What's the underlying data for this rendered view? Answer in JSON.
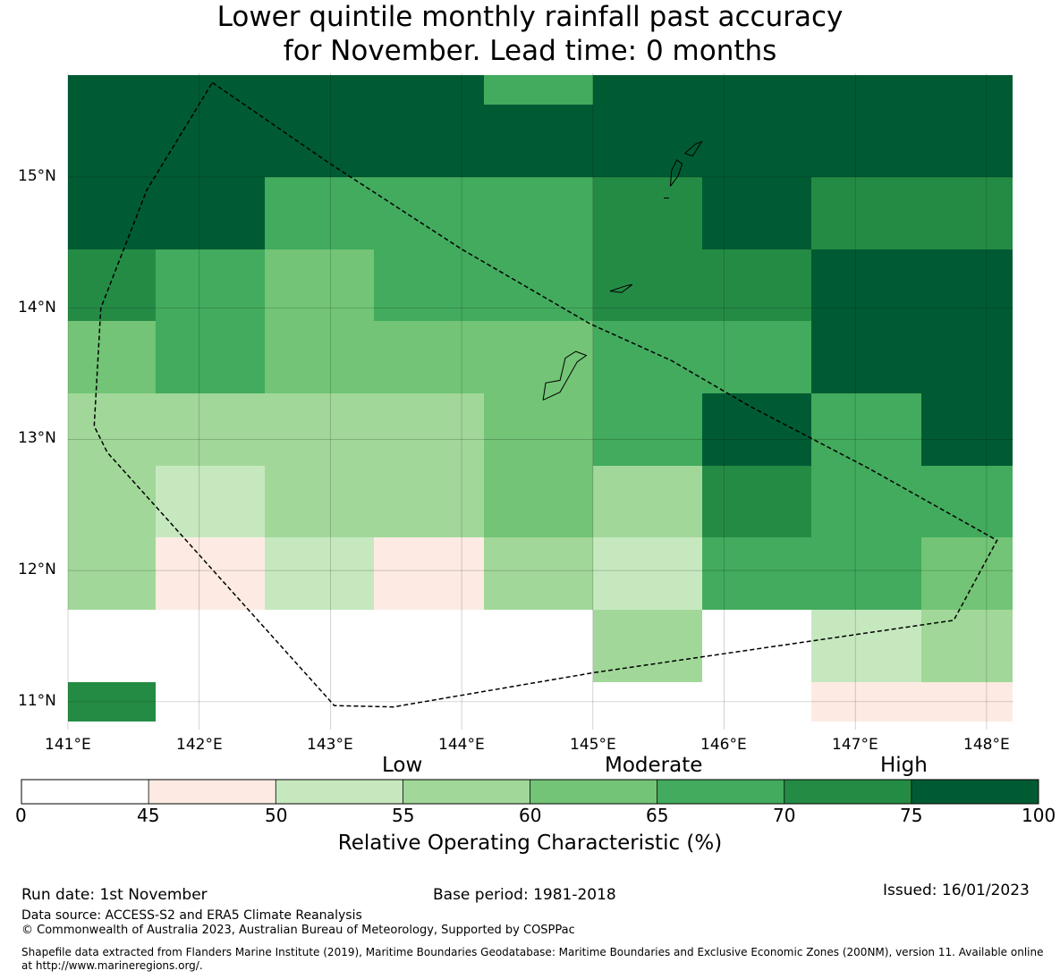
{
  "title": {
    "line1": "Lower quintile monthly rainfall past accuracy",
    "line2": "for November. Lead time: 0 months"
  },
  "map": {
    "lon_labels": [
      "141°E",
      "142°E",
      "143°E",
      "144°E",
      "145°E",
      "146°E",
      "147°E",
      "148°E"
    ],
    "lat_labels": [
      "15°N",
      "14°N",
      "13°N",
      "12°N",
      "11°N"
    ],
    "col_edges_lon": [
      141.0,
      141.667,
      142.5,
      143.333,
      144.167,
      145.0,
      145.833,
      146.667,
      147.5,
      148.2
    ],
    "row_edges_lat": [
      15.78,
      15.55,
      15.0,
      14.45,
      13.9,
      13.35,
      12.8,
      12.25,
      11.7,
      11.15,
      10.85
    ],
    "lon_range": [
      141.0,
      148.2
    ],
    "lat_range": [
      10.85,
      15.78
    ],
    "cell_values": [
      [
        80,
        80,
        80,
        80,
        67,
        80,
        80,
        80,
        80
      ],
      [
        80,
        80,
        80,
        80,
        80,
        80,
        80,
        80,
        80
      ],
      [
        80,
        80,
        67,
        67,
        67,
        72,
        80,
        72,
        72
      ],
      [
        72,
        67,
        62,
        67,
        67,
        72,
        72,
        80,
        80
      ],
      [
        62,
        67,
        62,
        62,
        62,
        67,
        67,
        80,
        80
      ],
      [
        57,
        57,
        57,
        57,
        62,
        67,
        80,
        67,
        80
      ],
      [
        57,
        52,
        57,
        57,
        62,
        57,
        72,
        67,
        67
      ],
      [
        57,
        47,
        52,
        47,
        57,
        52,
        67,
        67,
        62
      ],
      [
        10,
        10,
        10,
        10,
        10,
        57,
        10,
        52,
        57
      ],
      [
        72,
        10,
        10,
        10,
        10,
        10,
        10,
        47,
        47
      ]
    ],
    "boundary_lonlat": [
      [
        142.1,
        15.72
      ],
      [
        143.0,
        15.1
      ],
      [
        144.0,
        14.45
      ],
      [
        144.98,
        13.88
      ],
      [
        145.6,
        13.6
      ],
      [
        146.2,
        13.25
      ],
      [
        147.1,
        12.78
      ],
      [
        148.08,
        12.23
      ],
      [
        147.75,
        11.62
      ],
      [
        145.0,
        11.22
      ],
      [
        143.48,
        10.96
      ],
      [
        143.03,
        10.97
      ],
      [
        141.3,
        12.9
      ],
      [
        141.2,
        13.1
      ],
      [
        141.25,
        14.0
      ],
      [
        141.6,
        14.9
      ],
      [
        142.1,
        15.72
      ]
    ],
    "islands_lonlat": [
      [
        [
          144.62,
          13.3
        ],
        [
          144.75,
          13.36
        ],
        [
          144.88,
          13.59
        ],
        [
          144.95,
          13.64
        ],
        [
          144.87,
          13.67
        ],
        [
          144.79,
          13.62
        ],
        [
          144.75,
          13.45
        ],
        [
          144.64,
          13.43
        ],
        [
          144.63,
          13.36
        ],
        [
          144.62,
          13.3
        ]
      ],
      [
        [
          145.13,
          14.13
        ],
        [
          145.25,
          14.17
        ],
        [
          145.3,
          14.18
        ],
        [
          145.22,
          14.12
        ],
        [
          145.13,
          14.13
        ]
      ],
      [
        [
          145.59,
          14.93
        ],
        [
          145.65,
          15.01
        ],
        [
          145.68,
          15.1
        ],
        [
          145.64,
          15.13
        ],
        [
          145.6,
          15.05
        ],
        [
          145.59,
          14.93
        ]
      ],
      [
        [
          145.7,
          15.18
        ],
        [
          145.78,
          15.25
        ],
        [
          145.83,
          15.27
        ],
        [
          145.76,
          15.16
        ],
        [
          145.7,
          15.18
        ]
      ],
      [
        [
          145.54,
          14.84
        ],
        [
          145.58,
          14.84
        ]
      ]
    ]
  },
  "colorbar": {
    "categories": [
      "Low",
      "Moderate",
      "High"
    ],
    "ticks": [
      "0",
      "45",
      "50",
      "55",
      "60",
      "65",
      "70",
      "75",
      "100"
    ],
    "bins": [
      {
        "from": 0,
        "to": 45,
        "color": "#ffffff"
      },
      {
        "from": 45,
        "to": 50,
        "color": "#fdebe3"
      },
      {
        "from": 50,
        "to": 55,
        "color": "#c6e8bf"
      },
      {
        "from": 55,
        "to": 60,
        "color": "#a1d899"
      },
      {
        "from": 60,
        "to": 65,
        "color": "#73c476"
      },
      {
        "from": 65,
        "to": 70,
        "color": "#42ab5d"
      },
      {
        "from": 70,
        "to": 75,
        "color": "#248b45"
      },
      {
        "from": 75,
        "to": 100,
        "color": "#005b33"
      }
    ],
    "label": "Relative Operating Characteristic (%)"
  },
  "footer": {
    "run_date": "Run date: 1st November",
    "base_period": "Base period: 1981-2018",
    "issued": "Issued: 16/01/2023",
    "data_source": "Data source: ACCESS-S2 and ERA5 Climate Reanalysis",
    "copyright": "© Commonwealth of Australia 2023, Australian Bureau of Meteorology, Supported by COSPPac",
    "shapefile_line1": "Shapefile data extracted from Flanders Marine Institute (2019), Maritime Boundaries Geodatabase: Maritime Boundaries and Exclusive Economic Zones (200NM), version 11. Available online",
    "shapefile_line2": "at http://www.marineregions.org/."
  }
}
